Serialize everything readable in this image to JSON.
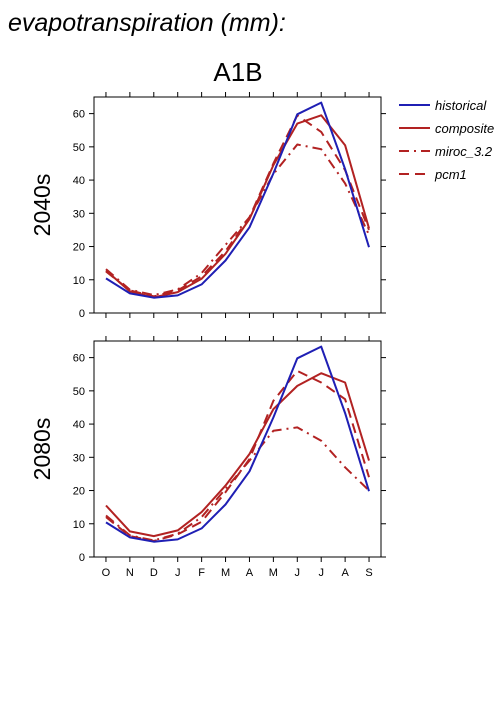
{
  "figure": {
    "title": "evapotranspiration (mm):",
    "scenario": "A1B"
  },
  "colors": {
    "historical": "#1f1fb4",
    "model": "#b22222"
  },
  "chart_data": [
    {
      "type": "line",
      "panel_label": "2040s",
      "categories": [
        "O",
        "N",
        "D",
        "J",
        "F",
        "M",
        "A",
        "M",
        "J",
        "J",
        "A",
        "S"
      ],
      "yticks": [
        0,
        10,
        20,
        30,
        40,
        50,
        60
      ],
      "ylim": [
        0,
        65
      ],
      "grid": false,
      "legend_position": "right",
      "series": [
        {
          "name": "historical",
          "color": "#1f1fb4",
          "dash": "solid",
          "values": [
            10.4,
            5.9,
            4.6,
            5.3,
            8.6,
            15.8,
            25.8,
            42.0,
            59.8,
            63.3,
            43.3,
            19.8
          ]
        },
        {
          "name": "composite",
          "color": "#b22222",
          "dash": "solid",
          "values": [
            12.8,
            6.5,
            4.7,
            6.3,
            10.3,
            17.8,
            28.3,
            44.5,
            57.0,
            59.5,
            50.5,
            25.5
          ]
        },
        {
          "name": "miroc_3.2",
          "color": "#b22222",
          "dash": "dashdot",
          "values": [
            13.2,
            7.0,
            5.4,
            7.1,
            12.0,
            20.5,
            28.8,
            41.8,
            50.7,
            49.3,
            39.0,
            23.5
          ]
        },
        {
          "name": "pcm1",
          "color": "#b22222",
          "dash": "dash",
          "values": [
            12.5,
            6.8,
            5.0,
            6.8,
            11.0,
            18.6,
            28.8,
            45.0,
            59.5,
            54.5,
            43.0,
            25.0
          ]
        }
      ]
    },
    {
      "type": "line",
      "panel_label": "2080s",
      "categories": [
        "O",
        "N",
        "D",
        "J",
        "F",
        "M",
        "A",
        "M",
        "J",
        "J",
        "A",
        "S"
      ],
      "yticks": [
        0,
        10,
        20,
        30,
        40,
        50,
        60
      ],
      "ylim": [
        0,
        65
      ],
      "grid": false,
      "series": [
        {
          "name": "historical",
          "color": "#1f1fb4",
          "dash": "solid",
          "values": [
            10.4,
            5.9,
            4.6,
            5.3,
            8.6,
            15.8,
            25.8,
            42.0,
            59.8,
            63.3,
            43.3,
            19.8
          ]
        },
        {
          "name": "composite",
          "color": "#b22222",
          "dash": "solid",
          "values": [
            15.5,
            7.7,
            6.3,
            8.0,
            13.5,
            21.5,
            31.0,
            44.5,
            51.5,
            55.3,
            52.5,
            29.0
          ]
        },
        {
          "name": "miroc_3.2",
          "color": "#b22222",
          "dash": "dashdot",
          "values": [
            12.5,
            6.5,
            5.0,
            7.0,
            12.0,
            20.5,
            29.0,
            38.0,
            39.0,
            35.0,
            27.0,
            20.0
          ]
        },
        {
          "name": "pcm1",
          "color": "#b22222",
          "dash": "dash",
          "values": [
            12.0,
            6.3,
            4.8,
            6.8,
            10.6,
            19.5,
            29.5,
            47.0,
            56.0,
            52.5,
            47.5,
            24.0
          ]
        }
      ]
    }
  ]
}
